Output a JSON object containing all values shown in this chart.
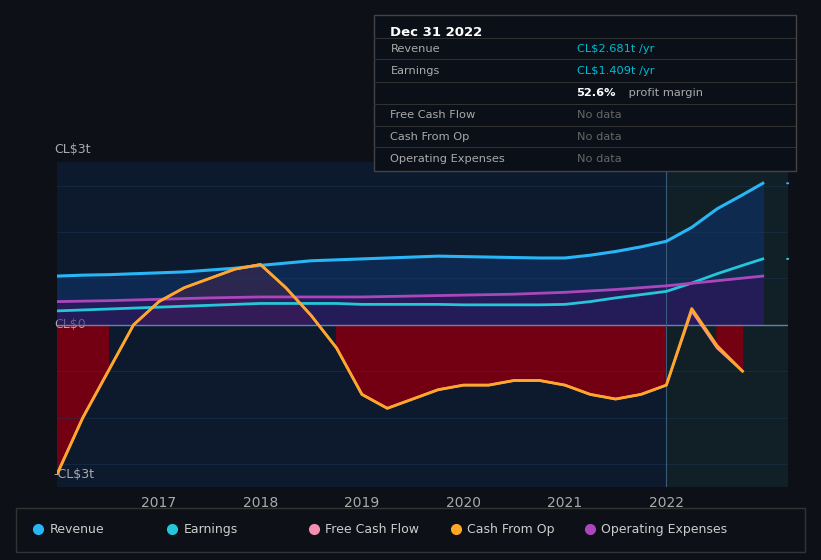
{
  "background_color": "#0d1117",
  "plot_bg_color": "#0d1a2e",
  "ylabel_top": "CL$3t",
  "ylabel_bottom": "-CL$3t",
  "ylabel_zero": "CL$0",
  "x_ticks": [
    "2017",
    "2018",
    "2019",
    "2020",
    "2021",
    "2022"
  ],
  "ylim": [
    -3.5,
    3.5
  ],
  "xlim": [
    2016.0,
    2023.2
  ],
  "info_box_title": "Dec 31 2022",
  "legend": [
    {
      "label": "Revenue",
      "color": "#29b6f6"
    },
    {
      "label": "Earnings",
      "color": "#26c6da"
    },
    {
      "label": "Free Cash Flow",
      "color": "#f48fb1"
    },
    {
      "label": "Cash From Op",
      "color": "#ffa726"
    },
    {
      "label": "Operating Expenses",
      "color": "#ab47bc"
    }
  ],
  "revenue": {
    "color": "#29b6f6",
    "linewidth": 2.2,
    "x": [
      2016.0,
      2016.25,
      2016.5,
      2016.75,
      2017.0,
      2017.25,
      2017.5,
      2017.75,
      2018.0,
      2018.25,
      2018.5,
      2018.75,
      2019.0,
      2019.25,
      2019.5,
      2019.75,
      2020.0,
      2020.25,
      2020.5,
      2020.75,
      2021.0,
      2021.25,
      2021.5,
      2021.75,
      2022.0,
      2022.25,
      2022.5,
      2022.75,
      2022.95
    ],
    "y": [
      1.05,
      1.07,
      1.08,
      1.1,
      1.12,
      1.14,
      1.18,
      1.22,
      1.28,
      1.33,
      1.38,
      1.4,
      1.42,
      1.44,
      1.46,
      1.48,
      1.47,
      1.46,
      1.45,
      1.44,
      1.44,
      1.5,
      1.58,
      1.68,
      1.8,
      2.1,
      2.5,
      2.8,
      3.05
    ]
  },
  "earnings": {
    "color": "#26c6da",
    "linewidth": 2.0,
    "x": [
      2016.0,
      2016.25,
      2016.5,
      2016.75,
      2017.0,
      2017.25,
      2017.5,
      2017.75,
      2018.0,
      2018.25,
      2018.5,
      2018.75,
      2019.0,
      2019.25,
      2019.5,
      2019.75,
      2020.0,
      2020.25,
      2020.5,
      2020.75,
      2021.0,
      2021.25,
      2021.5,
      2021.75,
      2022.0,
      2022.25,
      2022.5,
      2022.75,
      2022.95
    ],
    "y": [
      0.3,
      0.32,
      0.34,
      0.36,
      0.38,
      0.4,
      0.42,
      0.44,
      0.46,
      0.46,
      0.46,
      0.46,
      0.44,
      0.44,
      0.44,
      0.44,
      0.43,
      0.43,
      0.43,
      0.43,
      0.44,
      0.5,
      0.58,
      0.65,
      0.72,
      0.9,
      1.1,
      1.28,
      1.42
    ]
  },
  "operating_expenses": {
    "color": "#ab47bc",
    "linewidth": 2.0,
    "x": [
      2016.0,
      2016.5,
      2017.0,
      2017.5,
      2018.0,
      2018.5,
      2019.0,
      2019.5,
      2020.0,
      2020.5,
      2021.0,
      2021.5,
      2022.0,
      2022.5,
      2022.95
    ],
    "y": [
      0.5,
      0.52,
      0.55,
      0.58,
      0.6,
      0.6,
      0.6,
      0.62,
      0.64,
      0.66,
      0.7,
      0.76,
      0.84,
      0.95,
      1.05
    ]
  },
  "free_cash_flow": {
    "color": "#f48fb1",
    "linewidth": 1.8,
    "x": [
      2016.0,
      2016.25,
      2016.5,
      2016.75,
      2017.0,
      2017.25,
      2017.5,
      2017.75,
      2018.0,
      2018.25,
      2018.5,
      2018.75,
      2019.0,
      2019.25,
      2019.5,
      2019.75,
      2020.0,
      2020.25,
      2020.5,
      2020.75,
      2021.0,
      2021.25,
      2021.5,
      2021.75,
      2022.0,
      2022.25,
      2022.5,
      2022.75
    ],
    "y": [
      -3.2,
      -2.0,
      -1.0,
      0.0,
      0.5,
      0.8,
      1.0,
      1.2,
      1.3,
      0.8,
      0.2,
      -0.5,
      -1.5,
      -1.8,
      -1.6,
      -1.4,
      -1.3,
      -1.3,
      -1.2,
      -1.2,
      -1.3,
      -1.5,
      -1.6,
      -1.5,
      -1.3,
      0.3,
      -0.5,
      -1.0
    ]
  },
  "cash_from_op": {
    "color": "#ffa726",
    "linewidth": 2.0,
    "x": [
      2016.0,
      2016.25,
      2016.5,
      2016.75,
      2017.0,
      2017.25,
      2017.5,
      2017.75,
      2018.0,
      2018.25,
      2018.5,
      2018.75,
      2019.0,
      2019.25,
      2019.5,
      2019.75,
      2020.0,
      2020.25,
      2020.5,
      2020.75,
      2021.0,
      2021.25,
      2021.5,
      2021.75,
      2022.0,
      2022.25,
      2022.5,
      2022.75
    ],
    "y": [
      -3.2,
      -2.0,
      -1.0,
      0.0,
      0.5,
      0.8,
      1.0,
      1.2,
      1.3,
      0.8,
      0.2,
      -0.5,
      -1.5,
      -1.8,
      -1.6,
      -1.4,
      -1.3,
      -1.3,
      -1.2,
      -1.2,
      -1.3,
      -1.5,
      -1.6,
      -1.5,
      -1.3,
      0.35,
      -0.45,
      -1.0
    ]
  }
}
